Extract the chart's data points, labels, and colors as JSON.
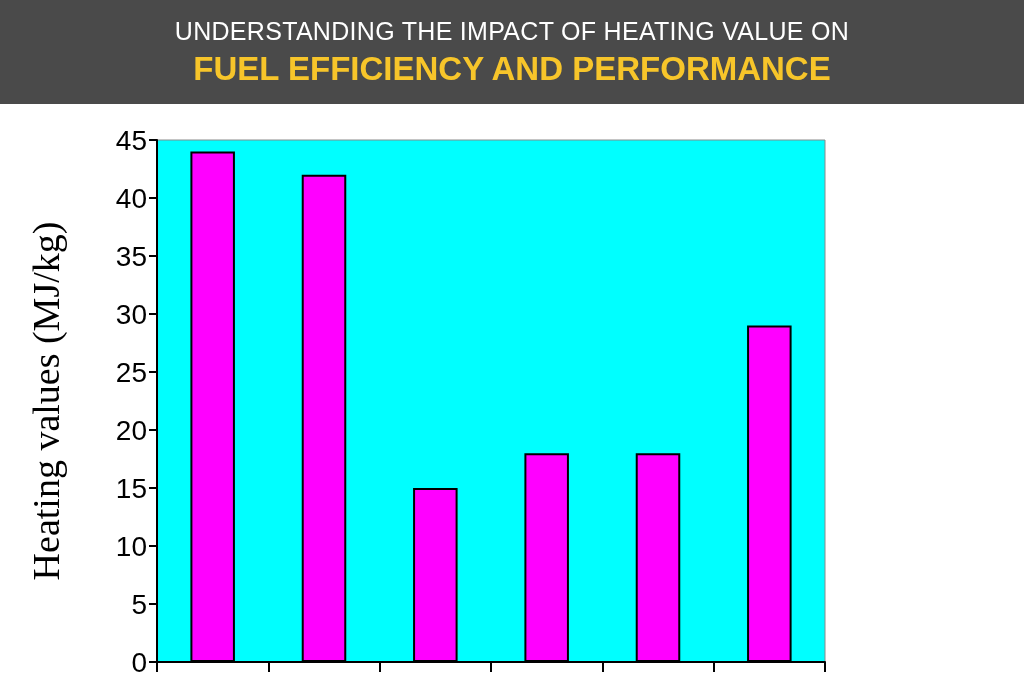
{
  "chart_data": {
    "type": "bar",
    "title": "UNDERSTANDING THE IMPACT OF HEATING VALUE ON",
    "subtitle": "FUEL EFFICIENCY AND PERFORMANCE",
    "ylabel": "Heating values (MJ/kg)",
    "categories": [
      null,
      null,
      null,
      null,
      null,
      null
    ],
    "values": [
      44,
      42,
      15,
      18,
      18,
      29
    ],
    "color": "#ff00ff",
    "ylim": [
      0,
      45
    ],
    "yticks": [
      0,
      5,
      10,
      15,
      20,
      25,
      30,
      35,
      40,
      45
    ]
  }
}
